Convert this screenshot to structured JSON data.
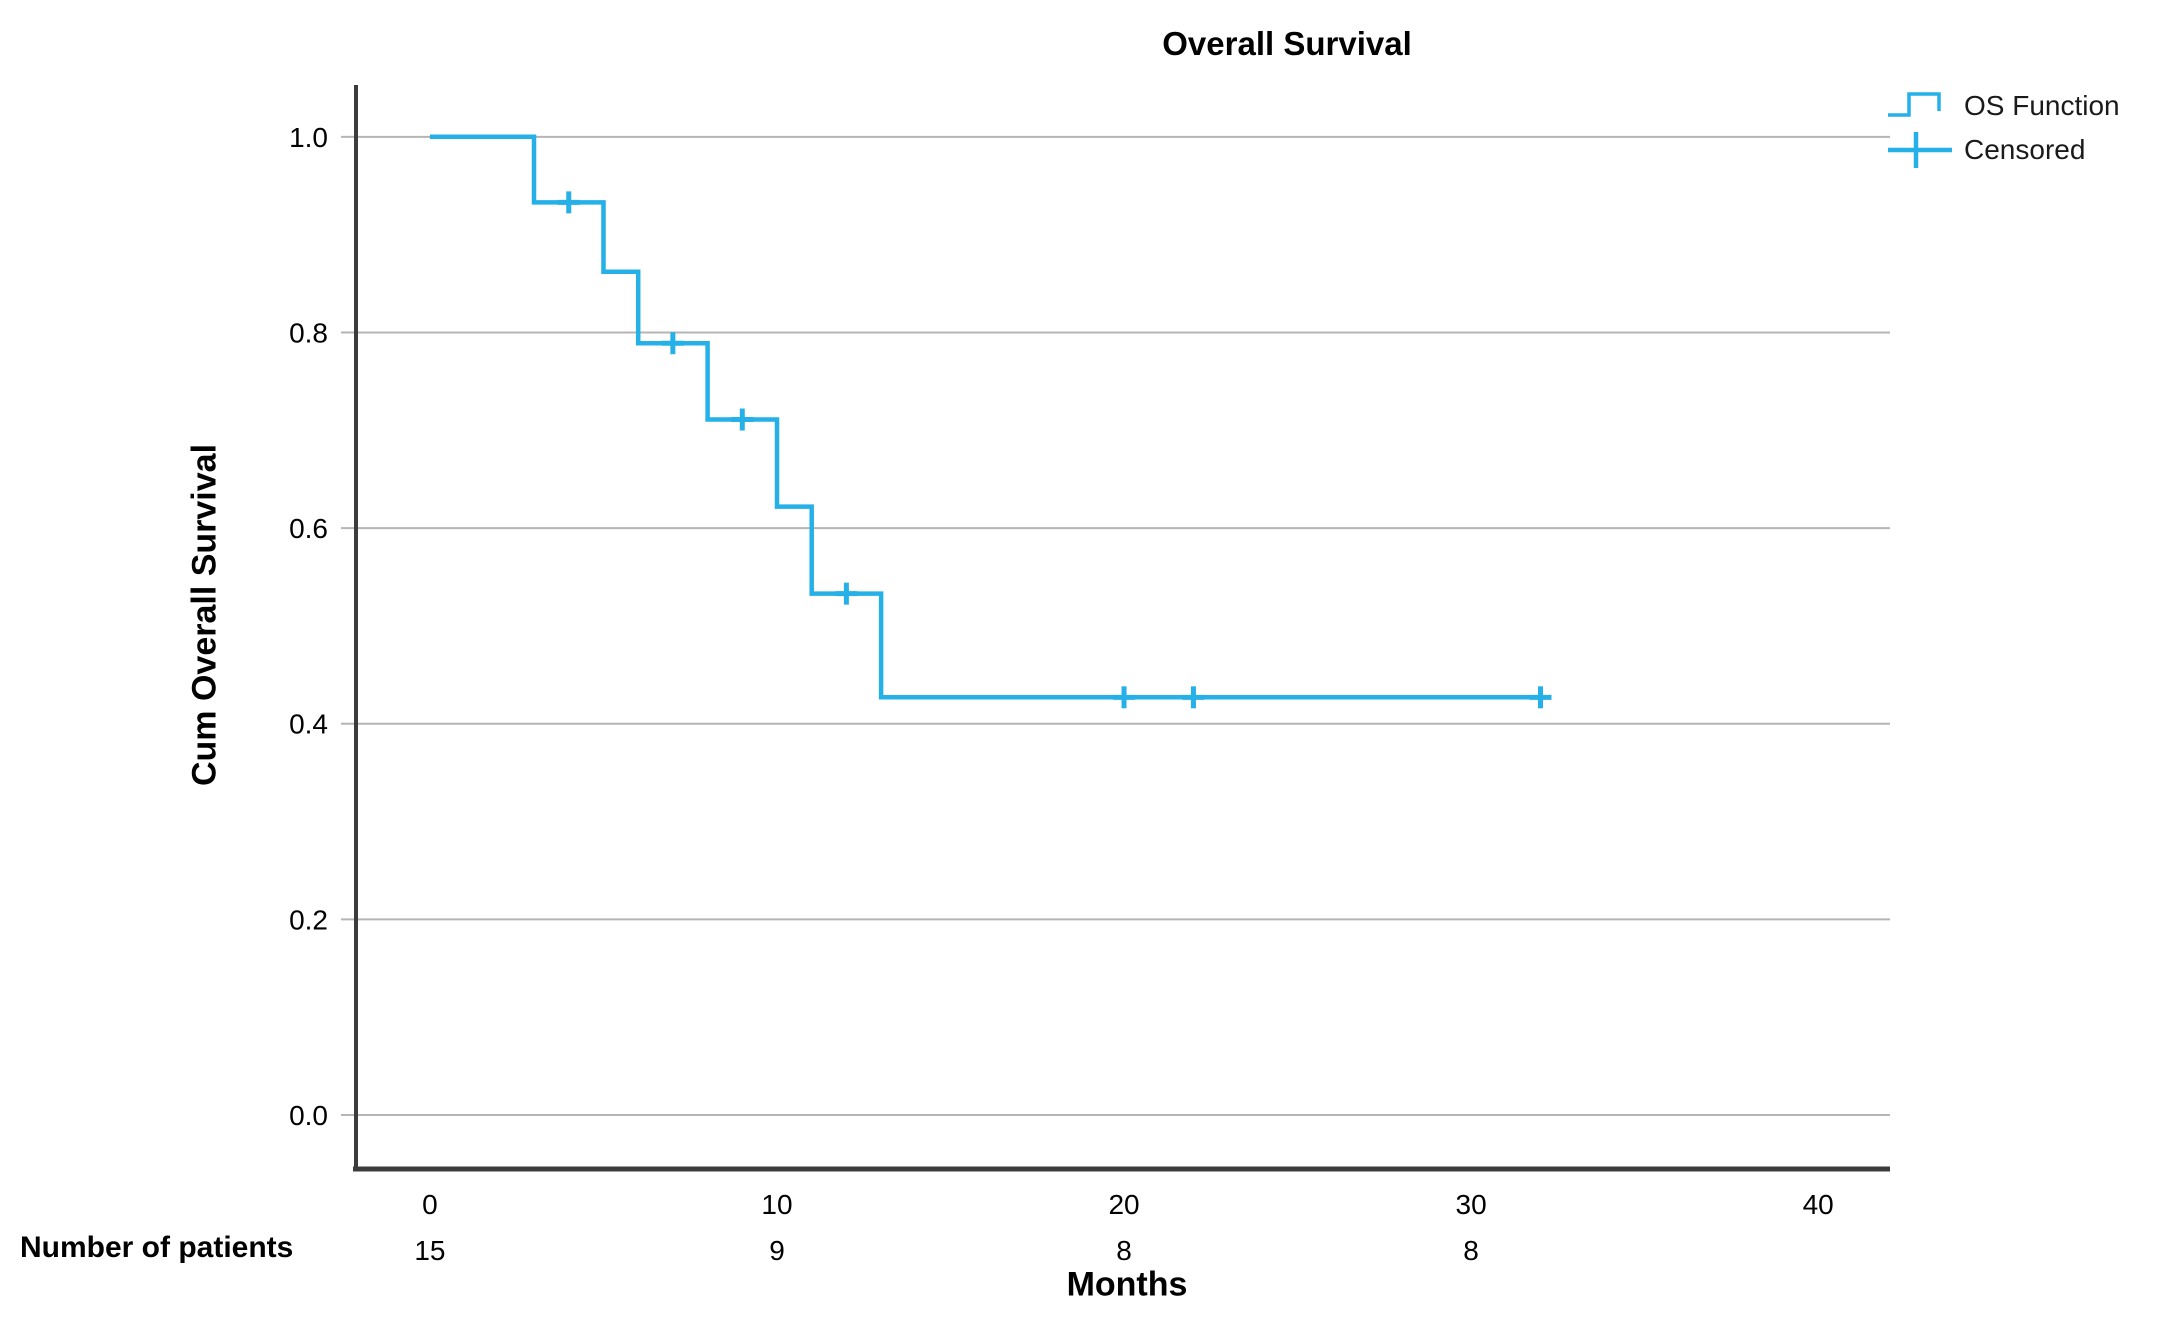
{
  "figure_title": "Overall Survival",
  "colors": {
    "curve": "#25b0e8",
    "gridline": "#b5b5b5",
    "spine": "#3c3c3c",
    "tick_text": "#000000",
    "legend_text": "#1a1a1a"
  },
  "legend": {
    "os_function_label": "OS Function",
    "censored_label": "Censored"
  },
  "chart_data": {
    "type": "line",
    "subtype": "kaplan-meier-step",
    "title": "Overall Survival",
    "xlabel": "Months",
    "ylabel": "Cum Overall Survival",
    "xlim": [
      -2.13,
      42.07
    ],
    "ylim": [
      -0.0542,
      1.053
    ],
    "x_ticks": [
      0,
      10,
      20,
      30,
      40
    ],
    "y_ticks": [
      1.0,
      0.8,
      0.6,
      0.4,
      0.2,
      0.0
    ],
    "grid": "horizontal",
    "legend": {
      "position": "top-right",
      "entries": [
        "OS Function",
        "Censored"
      ]
    },
    "series": [
      {
        "name": "OS Function",
        "step_points": [
          [
            0,
            1.0
          ],
          [
            3,
            1.0
          ],
          [
            3,
            0.933
          ],
          [
            5,
            0.933
          ],
          [
            5,
            0.862
          ],
          [
            6,
            0.862
          ],
          [
            6,
            0.789
          ],
          [
            8,
            0.789
          ],
          [
            8,
            0.711
          ],
          [
            10,
            0.711
          ],
          [
            10,
            0.622
          ],
          [
            11,
            0.622
          ],
          [
            11,
            0.533
          ],
          [
            13,
            0.533
          ],
          [
            13,
            0.427
          ],
          [
            32,
            0.427
          ]
        ],
        "censored_points": [
          [
            4,
            0.933
          ],
          [
            7,
            0.789
          ],
          [
            9,
            0.711
          ],
          [
            12,
            0.533
          ],
          [
            20,
            0.427
          ],
          [
            22,
            0.427
          ],
          [
            32,
            0.427
          ]
        ]
      }
    ],
    "number_at_risk": {
      "label": "Number of patients",
      "months": [
        0,
        10,
        20,
        30
      ],
      "values": [
        15,
        9,
        8,
        8
      ]
    }
  }
}
